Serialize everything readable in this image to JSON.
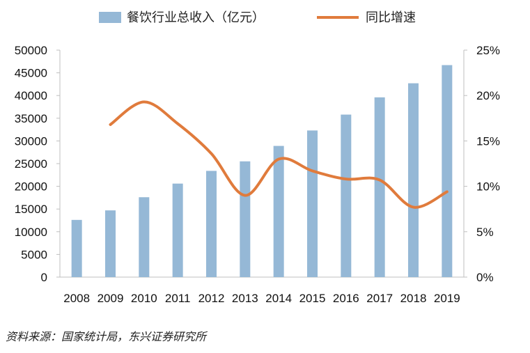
{
  "chart_data": {
    "type": "bar+line",
    "categories": [
      "2008",
      "2009",
      "2010",
      "2011",
      "2012",
      "2013",
      "2014",
      "2015",
      "2016",
      "2017",
      "2018",
      "2019"
    ],
    "series": [
      {
        "name": "餐饮行业总收入（亿元）",
        "type": "bar",
        "axis": "left",
        "color": "#95b8d6",
        "values": [
          12600,
          14700,
          17600,
          20600,
          23400,
          25500,
          28900,
          32300,
          35800,
          39600,
          42700,
          46700
        ]
      },
      {
        "name": "同比增速",
        "type": "line",
        "axis": "right",
        "color": "#e07b3c",
        "values": [
          null,
          16.8,
          19.3,
          16.9,
          13.6,
          9.0,
          13.0,
          11.7,
          10.8,
          10.7,
          7.7,
          9.4
        ]
      }
    ],
    "y_left": {
      "ylim": [
        0,
        50000
      ],
      "ticks": [
        "0",
        "5000",
        "10000",
        "15000",
        "20000",
        "25000",
        "30000",
        "35000",
        "40000",
        "45000",
        "50000"
      ]
    },
    "y_right": {
      "ylim": [
        0,
        25
      ],
      "ticks": [
        "0%",
        "5%",
        "10%",
        "15%",
        "20%",
        "25%"
      ]
    },
    "legend_position": "top-center",
    "grid": false
  },
  "source": "资料来源：国家统计局，东兴证券研究所"
}
